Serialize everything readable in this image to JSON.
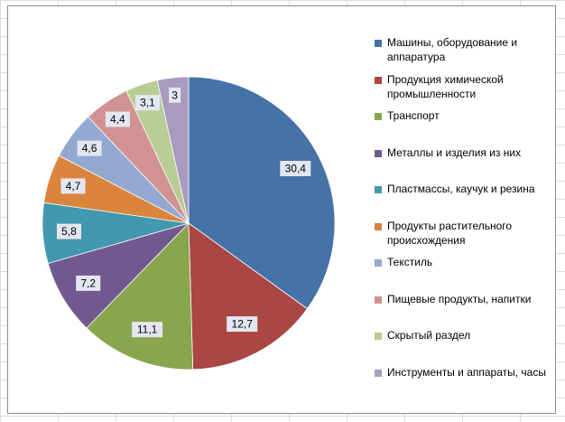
{
  "chart_data": {
    "type": "pie",
    "categories": [
      "Машины,  оборудование и аппаратура",
      "Продукция химической промышленности",
      "Транспорт",
      "Металлы и изделия  из них",
      "Пластмассы, каучук и резина",
      "Продукты растительного происхождения",
      "Текстиль",
      "Пищевые продукты, напитки",
      "Скрытый раздел",
      "Инструменты и аппараты, часы"
    ],
    "values": [
      30.4,
      12.7,
      11.1,
      7.2,
      5.8,
      4.7,
      4.6,
      4.4,
      3.1,
      3
    ],
    "data_labels": [
      "30,4",
      "12,7",
      "11,1",
      "7,2",
      "5,8",
      "4,7",
      "4,6",
      "4,4",
      "3,1",
      "3"
    ],
    "colors": [
      "#4572A7",
      "#AA4643",
      "#89A54E",
      "#71588F",
      "#4198AF",
      "#DB843D",
      "#93A9CF",
      "#D19392",
      "#B9CD96",
      "#A99BBD"
    ],
    "title": "",
    "legend_position": "right",
    "start_angle": "12 o'clock",
    "direction": "clockwise"
  }
}
